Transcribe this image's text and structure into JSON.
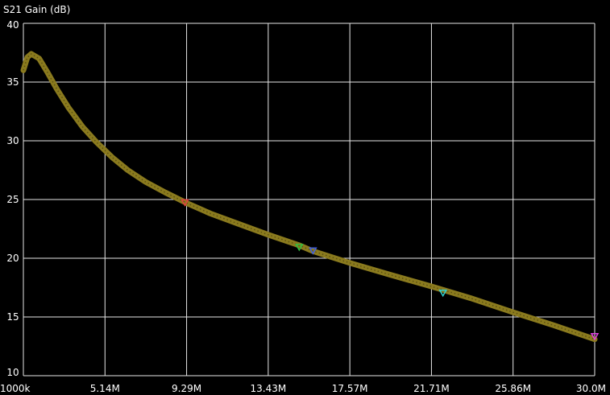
{
  "chart_data": {
    "type": "line",
    "title": "S21 Gain (dB)",
    "xlabel": "",
    "ylabel": "",
    "x_unit": "Hz",
    "xlim": [
      1000000,
      30000000
    ],
    "ylim": [
      10,
      40
    ],
    "x_tick_labels": [
      "1000k",
      "5.14M",
      "9.29M",
      "13.43M",
      "17.57M",
      "21.71M",
      "25.86M",
      "30.0M"
    ],
    "y_tick_labels": [
      "10",
      "15",
      "20",
      "25",
      "30",
      "35",
      "40"
    ],
    "grid": true,
    "background_color": "#000000",
    "grid_color": "#e6e6e6",
    "series": [
      {
        "color": "#8a7a1e",
        "x": [
          1000000,
          1200000,
          1400000,
          1800000,
          2200000,
          2700000,
          3300000,
          4000000,
          4700000,
          5500000,
          6300000,
          7200000,
          8200000,
          9290000,
          10500000,
          11800000,
          13430000,
          15000000,
          15700000,
          17570000,
          19600000,
          21710000,
          23700000,
          25860000,
          27900000,
          30000000
        ],
        "values": [
          36.0,
          37.1,
          37.4,
          37.0,
          35.9,
          34.4,
          32.8,
          31.2,
          29.9,
          28.6,
          27.5,
          26.5,
          25.6,
          24.7,
          23.8,
          23.0,
          22.0,
          21.1,
          20.6,
          19.6,
          18.6,
          17.6,
          16.6,
          15.4,
          14.3,
          13.1
        ]
      }
    ],
    "markers": [
      {
        "x": 9200000,
        "y": 24.7,
        "color": "#e04040"
      },
      {
        "x": 15000000,
        "y": 20.9,
        "color": "#30c040"
      },
      {
        "x": 15700000,
        "y": 20.6,
        "color": "#4060e0"
      },
      {
        "x": 22300000,
        "y": 17.0,
        "color": "#30d0d0"
      },
      {
        "x": 30000000,
        "y": 13.3,
        "color": "#e040e0"
      }
    ]
  }
}
